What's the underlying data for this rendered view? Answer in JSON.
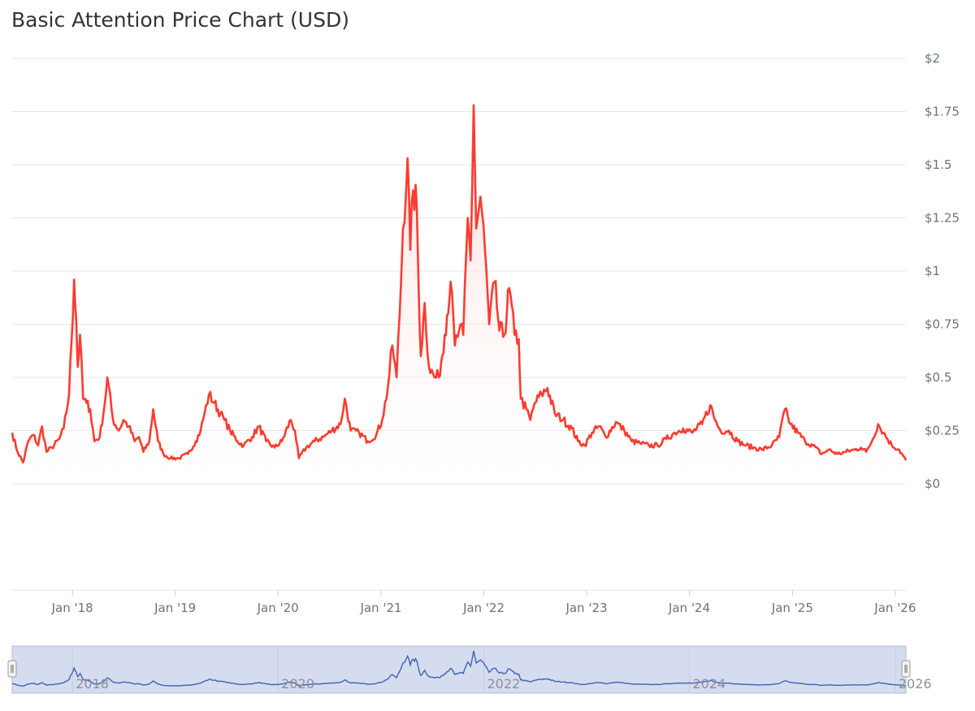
{
  "title": "Basic Attention Price Chart (USD)",
  "colors": {
    "line": "#ff3b30",
    "area_top": "#ffd6d3",
    "grid": "#e6e6e6",
    "navigator_fill": "#d6dcef",
    "navigator_line": "#3f63b5",
    "navigator_border": "#b3bdd9"
  },
  "chart_data": {
    "type": "line",
    "title": "Basic Attention Price Chart (USD)",
    "y_ticks": [
      {
        "value": 0,
        "label": "$0"
      },
      {
        "value": 0.25,
        "label": "$0.25"
      },
      {
        "value": 0.5,
        "label": "$0.5"
      },
      {
        "value": 0.75,
        "label": "$0.75"
      },
      {
        "value": 1,
        "label": "$1"
      },
      {
        "value": 1.25,
        "label": "$1.25"
      },
      {
        "value": 1.5,
        "label": "$1.5"
      },
      {
        "value": 1.75,
        "label": "$1.75"
      },
      {
        "value": 2,
        "label": "$2"
      }
    ],
    "ylim": [
      0,
      2
    ],
    "xlim": [
      "2017-06-01",
      "2026-02-08"
    ],
    "x_ticks": [
      {
        "date": "2018-01-01",
        "label": "Jan '18"
      },
      {
        "date": "2019-01-01",
        "label": "Jan '19"
      },
      {
        "date": "2020-01-01",
        "label": "Jan '20"
      },
      {
        "date": "2021-01-01",
        "label": "Jan '21"
      },
      {
        "date": "2022-01-01",
        "label": "Jan '22"
      },
      {
        "date": "2023-01-01",
        "label": "Jan '23"
      },
      {
        "date": "2024-01-01",
        "label": "Jan '24"
      },
      {
        "date": "2025-01-01",
        "label": "Jan '25"
      },
      {
        "date": "2026-01-01",
        "label": "Jan '26"
      }
    ],
    "navigator_labels": [
      {
        "date": "2018-01-01",
        "label": "2018"
      },
      {
        "date": "2020-01-01",
        "label": "2020"
      },
      {
        "date": "2022-01-01",
        "label": "2022"
      },
      {
        "date": "2024-01-01",
        "label": "2024"
      },
      {
        "date": "2026-01-01",
        "label": "2026"
      }
    ],
    "grid": true,
    "legend": "none",
    "series": [
      {
        "points": [
          [
            "2017-06-01",
            0.24
          ],
          [
            "2017-06-20",
            0.15
          ],
          [
            "2017-07-10",
            0.1
          ],
          [
            "2017-07-28",
            0.2
          ],
          [
            "2017-08-15",
            0.23
          ],
          [
            "2017-09-01",
            0.18
          ],
          [
            "2017-09-15",
            0.27
          ],
          [
            "2017-10-01",
            0.15
          ],
          [
            "2017-10-20",
            0.17
          ],
          [
            "2017-11-15",
            0.21
          ],
          [
            "2017-12-01",
            0.26
          ],
          [
            "2017-12-20",
            0.42
          ],
          [
            "2018-01-07",
            0.96
          ],
          [
            "2018-01-14",
            0.78
          ],
          [
            "2018-01-20",
            0.55
          ],
          [
            "2018-01-28",
            0.7
          ],
          [
            "2018-02-08",
            0.4
          ],
          [
            "2018-02-20",
            0.38
          ],
          [
            "2018-03-05",
            0.35
          ],
          [
            "2018-03-20",
            0.2
          ],
          [
            "2018-04-08",
            0.22
          ],
          [
            "2018-04-25",
            0.37
          ],
          [
            "2018-05-05",
            0.5
          ],
          [
            "2018-05-25",
            0.3
          ],
          [
            "2018-06-15",
            0.25
          ],
          [
            "2018-07-01",
            0.3
          ],
          [
            "2018-07-20",
            0.27
          ],
          [
            "2018-08-10",
            0.2
          ],
          [
            "2018-08-25",
            0.22
          ],
          [
            "2018-09-10",
            0.15
          ],
          [
            "2018-10-01",
            0.2
          ],
          [
            "2018-10-15",
            0.35
          ],
          [
            "2018-11-01",
            0.2
          ],
          [
            "2018-11-20",
            0.14
          ],
          [
            "2018-12-15",
            0.12
          ],
          [
            "2019-01-15",
            0.12
          ],
          [
            "2019-02-15",
            0.14
          ],
          [
            "2019-03-15",
            0.2
          ],
          [
            "2019-04-01",
            0.25
          ],
          [
            "2019-04-15",
            0.33
          ],
          [
            "2019-05-01",
            0.42
          ],
          [
            "2019-05-20",
            0.38
          ],
          [
            "2019-06-10",
            0.33
          ],
          [
            "2019-06-25",
            0.3
          ],
          [
            "2019-07-15",
            0.25
          ],
          [
            "2019-08-10",
            0.2
          ],
          [
            "2019-09-01",
            0.18
          ],
          [
            "2019-10-01",
            0.22
          ],
          [
            "2019-10-25",
            0.27
          ],
          [
            "2019-11-20",
            0.2
          ],
          [
            "2019-12-20",
            0.17
          ],
          [
            "2020-01-15",
            0.2
          ],
          [
            "2020-02-15",
            0.3
          ],
          [
            "2020-03-01",
            0.25
          ],
          [
            "2020-03-15",
            0.12
          ],
          [
            "2020-04-10",
            0.17
          ],
          [
            "2020-05-10",
            0.2
          ],
          [
            "2020-06-10",
            0.22
          ],
          [
            "2020-07-10",
            0.25
          ],
          [
            "2020-08-10",
            0.28
          ],
          [
            "2020-08-25",
            0.4
          ],
          [
            "2020-09-15",
            0.25
          ],
          [
            "2020-10-15",
            0.24
          ],
          [
            "2020-11-15",
            0.2
          ],
          [
            "2020-12-15",
            0.23
          ],
          [
            "2021-01-05",
            0.3
          ],
          [
            "2021-01-25",
            0.45
          ],
          [
            "2021-02-10",
            0.65
          ],
          [
            "2021-02-25",
            0.5
          ],
          [
            "2021-03-08",
            0.8
          ],
          [
            "2021-03-20",
            1.2
          ],
          [
            "2021-04-05",
            1.53
          ],
          [
            "2021-04-15",
            1.1
          ],
          [
            "2021-04-25",
            1.38
          ],
          [
            "2021-05-08",
            1.3
          ],
          [
            "2021-05-15",
            0.9
          ],
          [
            "2021-05-22",
            0.6
          ],
          [
            "2021-06-05",
            0.85
          ],
          [
            "2021-06-20",
            0.55
          ],
          [
            "2021-07-10",
            0.5
          ],
          [
            "2021-07-25",
            0.5
          ],
          [
            "2021-08-15",
            0.7
          ],
          [
            "2021-09-05",
            0.95
          ],
          [
            "2021-09-20",
            0.65
          ],
          [
            "2021-10-05",
            0.72
          ],
          [
            "2021-10-20",
            0.7
          ],
          [
            "2021-11-05",
            1.25
          ],
          [
            "2021-11-15",
            1.05
          ],
          [
            "2021-11-26",
            1.78
          ],
          [
            "2021-12-05",
            1.2
          ],
          [
            "2021-12-20",
            1.35
          ],
          [
            "2022-01-05",
            1.1
          ],
          [
            "2022-01-20",
            0.75
          ],
          [
            "2022-02-08",
            0.95
          ],
          [
            "2022-02-25",
            0.72
          ],
          [
            "2022-03-15",
            0.7
          ],
          [
            "2022-04-01",
            0.92
          ],
          [
            "2022-04-20",
            0.7
          ],
          [
            "2022-05-05",
            0.68
          ],
          [
            "2022-05-12",
            0.4
          ],
          [
            "2022-06-01",
            0.35
          ],
          [
            "2022-06-15",
            0.3
          ],
          [
            "2022-07-01",
            0.38
          ],
          [
            "2022-07-25",
            0.42
          ],
          [
            "2022-08-15",
            0.45
          ],
          [
            "2022-09-10",
            0.33
          ],
          [
            "2022-10-10",
            0.3
          ],
          [
            "2022-11-10",
            0.26
          ],
          [
            "2022-12-01",
            0.2
          ],
          [
            "2022-12-25",
            0.18
          ],
          [
            "2023-01-20",
            0.24
          ],
          [
            "2023-02-15",
            0.27
          ],
          [
            "2023-03-10",
            0.22
          ],
          [
            "2023-04-15",
            0.29
          ],
          [
            "2023-05-15",
            0.25
          ],
          [
            "2023-06-10",
            0.2
          ],
          [
            "2023-07-10",
            0.19
          ],
          [
            "2023-08-10",
            0.18
          ],
          [
            "2023-09-10",
            0.18
          ],
          [
            "2023-10-10",
            0.21
          ],
          [
            "2023-11-10",
            0.24
          ],
          [
            "2023-12-10",
            0.26
          ],
          [
            "2024-01-10",
            0.24
          ],
          [
            "2024-02-15",
            0.28
          ],
          [
            "2024-03-15",
            0.37
          ],
          [
            "2024-04-01",
            0.3
          ],
          [
            "2024-04-20",
            0.25
          ],
          [
            "2024-05-20",
            0.25
          ],
          [
            "2024-06-20",
            0.2
          ],
          [
            "2024-07-20",
            0.18
          ],
          [
            "2024-08-15",
            0.17
          ],
          [
            "2024-09-15",
            0.16
          ],
          [
            "2024-10-20",
            0.18
          ],
          [
            "2024-11-15",
            0.22
          ],
          [
            "2024-12-05",
            0.35
          ],
          [
            "2024-12-25",
            0.28
          ],
          [
            "2025-01-20",
            0.24
          ],
          [
            "2025-02-15",
            0.2
          ],
          [
            "2025-03-15",
            0.18
          ],
          [
            "2025-04-15",
            0.14
          ],
          [
            "2025-05-10",
            0.16
          ],
          [
            "2025-06-10",
            0.14
          ],
          [
            "2025-07-10",
            0.15
          ],
          [
            "2025-08-10",
            0.16
          ],
          [
            "2025-09-01",
            0.17
          ],
          [
            "2025-09-20",
            0.15
          ],
          [
            "2025-10-10",
            0.2
          ],
          [
            "2025-11-01",
            0.28
          ],
          [
            "2025-11-20",
            0.24
          ],
          [
            "2025-12-20",
            0.18
          ],
          [
            "2026-01-15",
            0.16
          ],
          [
            "2026-02-08",
            0.11
          ]
        ]
      }
    ]
  }
}
